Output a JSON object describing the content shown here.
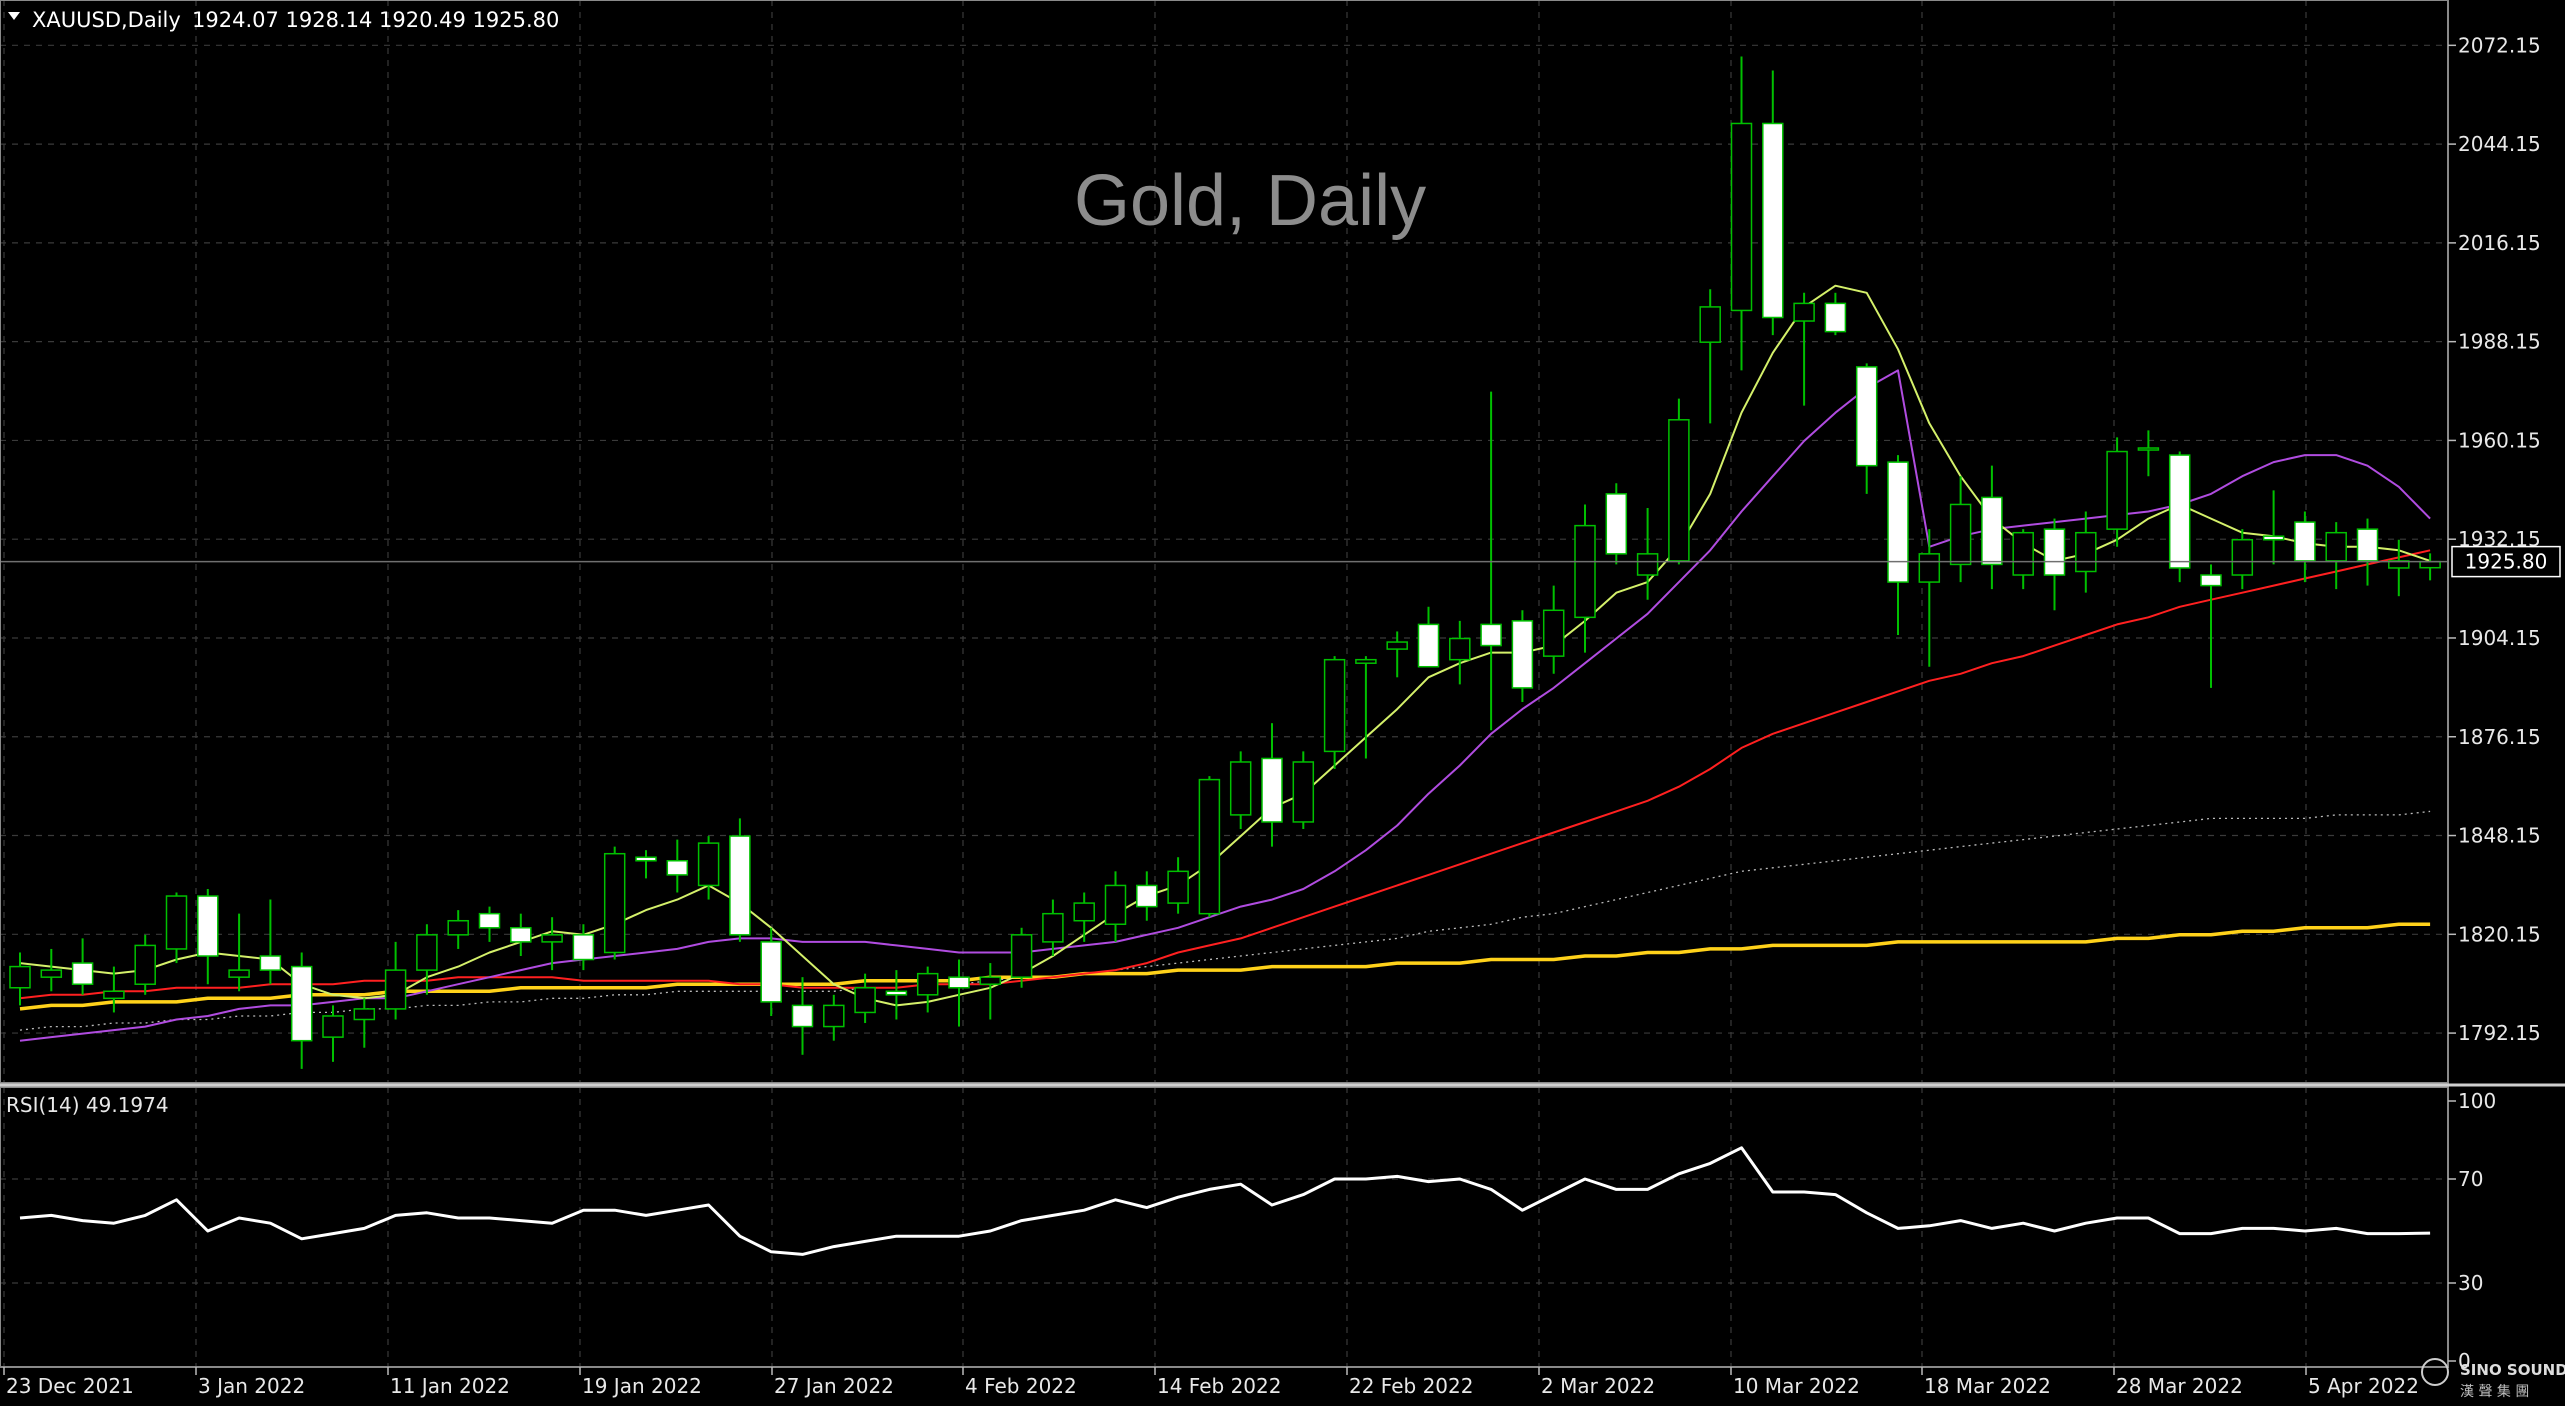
{
  "header": {
    "symbol": "XAUUSD,Daily",
    "ohlc": "1924.07 1928.14 1920.49 1925.80"
  },
  "watermark": "Gold, Daily",
  "current_price": "1925.80",
  "price_axis_labels": [
    "2072.15",
    "2044.15",
    "2016.15",
    "1988.15",
    "1960.15",
    "1932.15",
    "1904.15",
    "1876.15",
    "1848.15",
    "1820.15",
    "1792.15"
  ],
  "rsi_panel": {
    "label": "RSI(14) 49.1974",
    "levels": [
      "100",
      "70",
      "30",
      "0"
    ]
  },
  "date_labels": [
    "23 Dec 2021",
    "3 Jan 2022",
    "11 Jan 2022",
    "19 Jan 2022",
    "27 Jan 2022",
    "4 Feb 2022",
    "14 Feb 2022",
    "22 Feb 2022",
    "2 Mar 2022",
    "10 Mar 2022",
    "18 Mar 2022",
    "28 Mar 2022",
    "5 Apr 2022"
  ],
  "logo": {
    "text": "SINO SOUND",
    "subtext": "漢 聲 集 團"
  },
  "colors": {
    "background": "#000000",
    "grid": "#3a3a3a",
    "bull_candle": "#000000",
    "bear_candle": "#ffffff",
    "wick": "#00c000",
    "ma_short": "#d4f06a",
    "ma_medium": "#b04ce0",
    "ma_long": "#ff2020",
    "ma_200": "#ffd21a",
    "ma_dotted": "#bbbbbb",
    "rsi_line": "#ffffff"
  },
  "chart_data": {
    "type": "candlestick",
    "symbol": "XAUUSD",
    "timeframe": "Daily",
    "ylim": [
      1778,
      2085
    ],
    "candles": [
      {
        "o": 1805,
        "h": 1815,
        "l": 1800,
        "c": 1811
      },
      {
        "o": 1808,
        "h": 1816,
        "l": 1804,
        "c": 1810
      },
      {
        "o": 1812,
        "h": 1819,
        "l": 1803,
        "c": 1806
      },
      {
        "o": 1802,
        "h": 1811,
        "l": 1798,
        "c": 1804
      },
      {
        "o": 1806,
        "h": 1820,
        "l": 1803,
        "c": 1817
      },
      {
        "o": 1816,
        "h": 1832,
        "l": 1812,
        "c": 1831
      },
      {
        "o": 1831,
        "h": 1833,
        "l": 1806,
        "c": 1814
      },
      {
        "o": 1808,
        "h": 1826,
        "l": 1804,
        "c": 1810
      },
      {
        "o": 1814,
        "h": 1830,
        "l": 1806,
        "c": 1810
      },
      {
        "o": 1811,
        "h": 1815,
        "l": 1782,
        "c": 1790
      },
      {
        "o": 1791,
        "h": 1800,
        "l": 1784,
        "c": 1797
      },
      {
        "o": 1796,
        "h": 1802,
        "l": 1788,
        "c": 1799
      },
      {
        "o": 1799,
        "h": 1818,
        "l": 1796,
        "c": 1810
      },
      {
        "o": 1810,
        "h": 1823,
        "l": 1803,
        "c": 1820
      },
      {
        "o": 1820,
        "h": 1827,
        "l": 1816,
        "c": 1824
      },
      {
        "o": 1826,
        "h": 1828,
        "l": 1818,
        "c": 1822
      },
      {
        "o": 1822,
        "h": 1826,
        "l": 1814,
        "c": 1818
      },
      {
        "o": 1818,
        "h": 1825,
        "l": 1810,
        "c": 1820
      },
      {
        "o": 1820,
        "h": 1823,
        "l": 1810,
        "c": 1813
      },
      {
        "o": 1815,
        "h": 1845,
        "l": 1813,
        "c": 1843
      },
      {
        "o": 1842,
        "h": 1844,
        "l": 1836,
        "c": 1841
      },
      {
        "o": 1841,
        "h": 1847,
        "l": 1832,
        "c": 1837
      },
      {
        "o": 1834,
        "h": 1848,
        "l": 1830,
        "c": 1846
      },
      {
        "o": 1848,
        "h": 1853,
        "l": 1818,
        "c": 1820
      },
      {
        "o": 1818,
        "h": 1822,
        "l": 1797,
        "c": 1801
      },
      {
        "o": 1800,
        "h": 1808,
        "l": 1786,
        "c": 1794
      },
      {
        "o": 1794,
        "h": 1803,
        "l": 1790,
        "c": 1800
      },
      {
        "o": 1798,
        "h": 1809,
        "l": 1795,
        "c": 1805
      },
      {
        "o": 1804,
        "h": 1810,
        "l": 1796,
        "c": 1803
      },
      {
        "o": 1803,
        "h": 1811,
        "l": 1798,
        "c": 1809
      },
      {
        "o": 1808,
        "h": 1813,
        "l": 1794,
        "c": 1805
      },
      {
        "o": 1806,
        "h": 1812,
        "l": 1796,
        "c": 1808
      },
      {
        "o": 1808,
        "h": 1822,
        "l": 1805,
        "c": 1820
      },
      {
        "o": 1818,
        "h": 1830,
        "l": 1814,
        "c": 1826
      },
      {
        "o": 1824,
        "h": 1832,
        "l": 1818,
        "c": 1829
      },
      {
        "o": 1823,
        "h": 1838,
        "l": 1818,
        "c": 1834
      },
      {
        "o": 1834,
        "h": 1838,
        "l": 1824,
        "c": 1828
      },
      {
        "o": 1829,
        "h": 1842,
        "l": 1826,
        "c": 1838
      },
      {
        "o": 1826,
        "h": 1865,
        "l": 1825,
        "c": 1864
      },
      {
        "o": 1854,
        "h": 1872,
        "l": 1850,
        "c": 1869
      },
      {
        "o": 1870,
        "h": 1880,
        "l": 1845,
        "c": 1852
      },
      {
        "o": 1852,
        "h": 1872,
        "l": 1850,
        "c": 1869
      },
      {
        "o": 1872,
        "h": 1899,
        "l": 1867,
        "c": 1898
      },
      {
        "o": 1897,
        "h": 1899,
        "l": 1870,
        "c": 1898
      },
      {
        "o": 1901,
        "h": 1906,
        "l": 1893,
        "c": 1903
      },
      {
        "o": 1908,
        "h": 1913,
        "l": 1897,
        "c": 1896
      },
      {
        "o": 1898,
        "h": 1909,
        "l": 1891,
        "c": 1904
      },
      {
        "o": 1908,
        "h": 1974,
        "l": 1878,
        "c": 1902
      },
      {
        "o": 1909,
        "h": 1912,
        "l": 1886,
        "c": 1890
      },
      {
        "o": 1899,
        "h": 1919,
        "l": 1894,
        "c": 1912
      },
      {
        "o": 1910,
        "h": 1942,
        "l": 1900,
        "c": 1936
      },
      {
        "o": 1945,
        "h": 1948,
        "l": 1925,
        "c": 1928
      },
      {
        "o": 1922,
        "h": 1941,
        "l": 1915,
        "c": 1928
      },
      {
        "o": 1926,
        "h": 1972,
        "l": 1925,
        "c": 1966
      },
      {
        "o": 1988,
        "h": 2003,
        "l": 1965,
        "c": 1998
      },
      {
        "o": 1997,
        "h": 2069,
        "l": 1980,
        "c": 2050
      },
      {
        "o": 2050,
        "h": 2065,
        "l": 1990,
        "c": 1995
      },
      {
        "o": 1994,
        "h": 2002,
        "l": 1970,
        "c": 1999
      },
      {
        "o": 1999,
        "h": 2002,
        "l": 1990,
        "c": 1991
      },
      {
        "o": 1981,
        "h": 1982,
        "l": 1945,
        "c": 1953
      },
      {
        "o": 1954,
        "h": 1956,
        "l": 1905,
        "c": 1920
      },
      {
        "o": 1920,
        "h": 1935,
        "l": 1896,
        "c": 1928
      },
      {
        "o": 1925,
        "h": 1950,
        "l": 1920,
        "c": 1942
      },
      {
        "o": 1944,
        "h": 1953,
        "l": 1918,
        "c": 1925
      },
      {
        "o": 1922,
        "h": 1935,
        "l": 1918,
        "c": 1934
      },
      {
        "o": 1935,
        "h": 1938,
        "l": 1912,
        "c": 1922
      },
      {
        "o": 1923,
        "h": 1940,
        "l": 1917,
        "c": 1934
      },
      {
        "o": 1935,
        "h": 1961,
        "l": 1930,
        "c": 1957
      },
      {
        "o": 1958,
        "h": 1963,
        "l": 1950,
        "c": 1958
      },
      {
        "o": 1956,
        "h": 1957,
        "l": 1920,
        "c": 1924
      },
      {
        "o": 1922,
        "h": 1925,
        "l": 1890,
        "c": 1919
      },
      {
        "o": 1922,
        "h": 1935,
        "l": 1918,
        "c": 1932
      },
      {
        "o": 1933,
        "h": 1946,
        "l": 1925,
        "c": 1932
      },
      {
        "o": 1937,
        "h": 1940,
        "l": 1920,
        "c": 1926
      },
      {
        "o": 1926,
        "h": 1937,
        "l": 1918,
        "c": 1934
      },
      {
        "o": 1935,
        "h": 1938,
        "l": 1919,
        "c": 1926
      },
      {
        "o": 1924,
        "h": 1932,
        "l": 1916,
        "c": 1926
      },
      {
        "o": 1924.07,
        "h": 1928.14,
        "l": 1920.49,
        "c": 1925.8
      }
    ],
    "ma_short": [
      1812,
      1811,
      1810,
      1809,
      1810,
      1813,
      1815,
      1814,
      1813,
      1806,
      1803,
      1802,
      1803,
      1808,
      1811,
      1815,
      1818,
      1821,
      1820,
      1823,
      1827,
      1830,
      1834,
      1829,
      1822,
      1814,
      1806,
      1802,
      1800,
      1801,
      1803,
      1805,
      1809,
      1814,
      1820,
      1826,
      1831,
      1834,
      1840,
      1848,
      1856,
      1860,
      1868,
      1876,
      1884,
      1893,
      1897,
      1900,
      1900,
      1902,
      1909,
      1917,
      1920,
      1930,
      1945,
      1968,
      1985,
      1998,
      2004,
      2002,
      1986,
      1965,
      1950,
      1938,
      1931,
      1926,
      1928,
      1932,
      1938,
      1942,
      1938,
      1934,
      1933,
      1931,
      1930,
      1930,
      1929,
      1926
    ],
    "ma_medium": [
      1790,
      1791,
      1792,
      1793,
      1794,
      1796,
      1797,
      1799,
      1800,
      1800,
      1801,
      1802,
      1802,
      1804,
      1806,
      1808,
      1810,
      1812,
      1813,
      1814,
      1815,
      1816,
      1818,
      1819,
      1819,
      1818,
      1818,
      1818,
      1817,
      1816,
      1815,
      1815,
      1815,
      1816,
      1817,
      1818,
      1820,
      1822,
      1825,
      1828,
      1830,
      1833,
      1838,
      1844,
      1851,
      1860,
      1868,
      1877,
      1884,
      1890,
      1897,
      1904,
      1911,
      1920,
      1929,
      1940,
      1950,
      1960,
      1968,
      1975,
      1980,
      1930,
      1933,
      1935,
      1936,
      1937,
      1938,
      1939,
      1940,
      1942,
      1945,
      1950,
      1954,
      1956,
      1956,
      1953,
      1947,
      1938
    ],
    "ma_long": [
      1802,
      1803,
      1803,
      1804,
      1804,
      1805,
      1805,
      1805,
      1806,
      1806,
      1806,
      1807,
      1807,
      1807,
      1808,
      1808,
      1808,
      1808,
      1807,
      1807,
      1807,
      1807,
      1807,
      1806,
      1806,
      1805,
      1805,
      1805,
      1805,
      1806,
      1806,
      1806,
      1807,
      1808,
      1809,
      1810,
      1812,
      1815,
      1817,
      1819,
      1822,
      1825,
      1828,
      1831,
      1834,
      1837,
      1840,
      1843,
      1846,
      1849,
      1852,
      1855,
      1858,
      1862,
      1867,
      1873,
      1877,
      1880,
      1883,
      1886,
      1889,
      1892,
      1894,
      1897,
      1899,
      1902,
      1905,
      1908,
      1910,
      1913,
      1915,
      1917,
      1919,
      1921,
      1923,
      1925,
      1927,
      1929
    ],
    "ma_dotted": [
      1793,
      1794,
      1794,
      1795,
      1795,
      1796,
      1796,
      1797,
      1797,
      1798,
      1798,
      1799,
      1799,
      1800,
      1800,
      1801,
      1801,
      1802,
      1802,
      1803,
      1803,
      1804,
      1804,
      1804,
      1804,
      1804,
      1804,
      1805,
      1805,
      1806,
      1806,
      1807,
      1808,
      1808,
      1809,
      1810,
      1811,
      1812,
      1813,
      1814,
      1815,
      1816,
      1817,
      1818,
      1819,
      1821,
      1822,
      1823,
      1825,
      1826,
      1828,
      1830,
      1832,
      1834,
      1836,
      1838,
      1839,
      1840,
      1841,
      1842,
      1843,
      1844,
      1845,
      1846,
      1847,
      1848,
      1849,
      1850,
      1851,
      1852,
      1853,
      1853,
      1853,
      1853,
      1854,
      1854,
      1854,
      1855
    ],
    "ma_200": [
      1799,
      1800,
      1800,
      1801,
      1801,
      1801,
      1802,
      1802,
      1802,
      1803,
      1803,
      1803,
      1804,
      1804,
      1804,
      1804,
      1805,
      1805,
      1805,
      1805,
      1805,
      1806,
      1806,
      1806,
      1806,
      1806,
      1806,
      1807,
      1807,
      1807,
      1807,
      1808,
      1808,
      1808,
      1809,
      1809,
      1809,
      1810,
      1810,
      1810,
      1811,
      1811,
      1811,
      1811,
      1812,
      1812,
      1812,
      1813,
      1813,
      1813,
      1814,
      1814,
      1815,
      1815,
      1816,
      1816,
      1817,
      1817,
      1817,
      1817,
      1818,
      1818,
      1818,
      1818,
      1818,
      1818,
      1818,
      1819,
      1819,
      1820,
      1820,
      1821,
      1821,
      1822,
      1822,
      1822,
      1823,
      1823
    ],
    "rsi": [
      55,
      56,
      54,
      53,
      56,
      62,
      50,
      55,
      53,
      47,
      49,
      51,
      56,
      57,
      55,
      55,
      54,
      53,
      58,
      58,
      56,
      58,
      60,
      48,
      42,
      41,
      44,
      46,
      48,
      48,
      48,
      50,
      54,
      56,
      58,
      62,
      59,
      63,
      66,
      68,
      60,
      64,
      70,
      70,
      71,
      69,
      70,
      66,
      58,
      64,
      70,
      66,
      66,
      72,
      76,
      82,
      65,
      65,
      64,
      57,
      51,
      52,
      54,
      51,
      53,
      50,
      53,
      55,
      55,
      49,
      49,
      51,
      51,
      50,
      51,
      49,
      49,
      49.2
    ],
    "rsi_ylim": [
      0,
      100
    ],
    "rsi_levels": [
      30,
      70
    ],
    "xlabels": [
      "23 Dec 2021",
      "3 Jan 2022",
      "11 Jan 2022",
      "19 Jan 2022",
      "27 Jan 2022",
      "4 Feb 2022",
      "14 Feb 2022",
      "22 Feb 2022",
      "2 Mar 2022",
      "10 Mar 2022",
      "18 Mar 2022",
      "28 Mar 2022",
      "5 Apr 2022"
    ],
    "grid": true
  }
}
